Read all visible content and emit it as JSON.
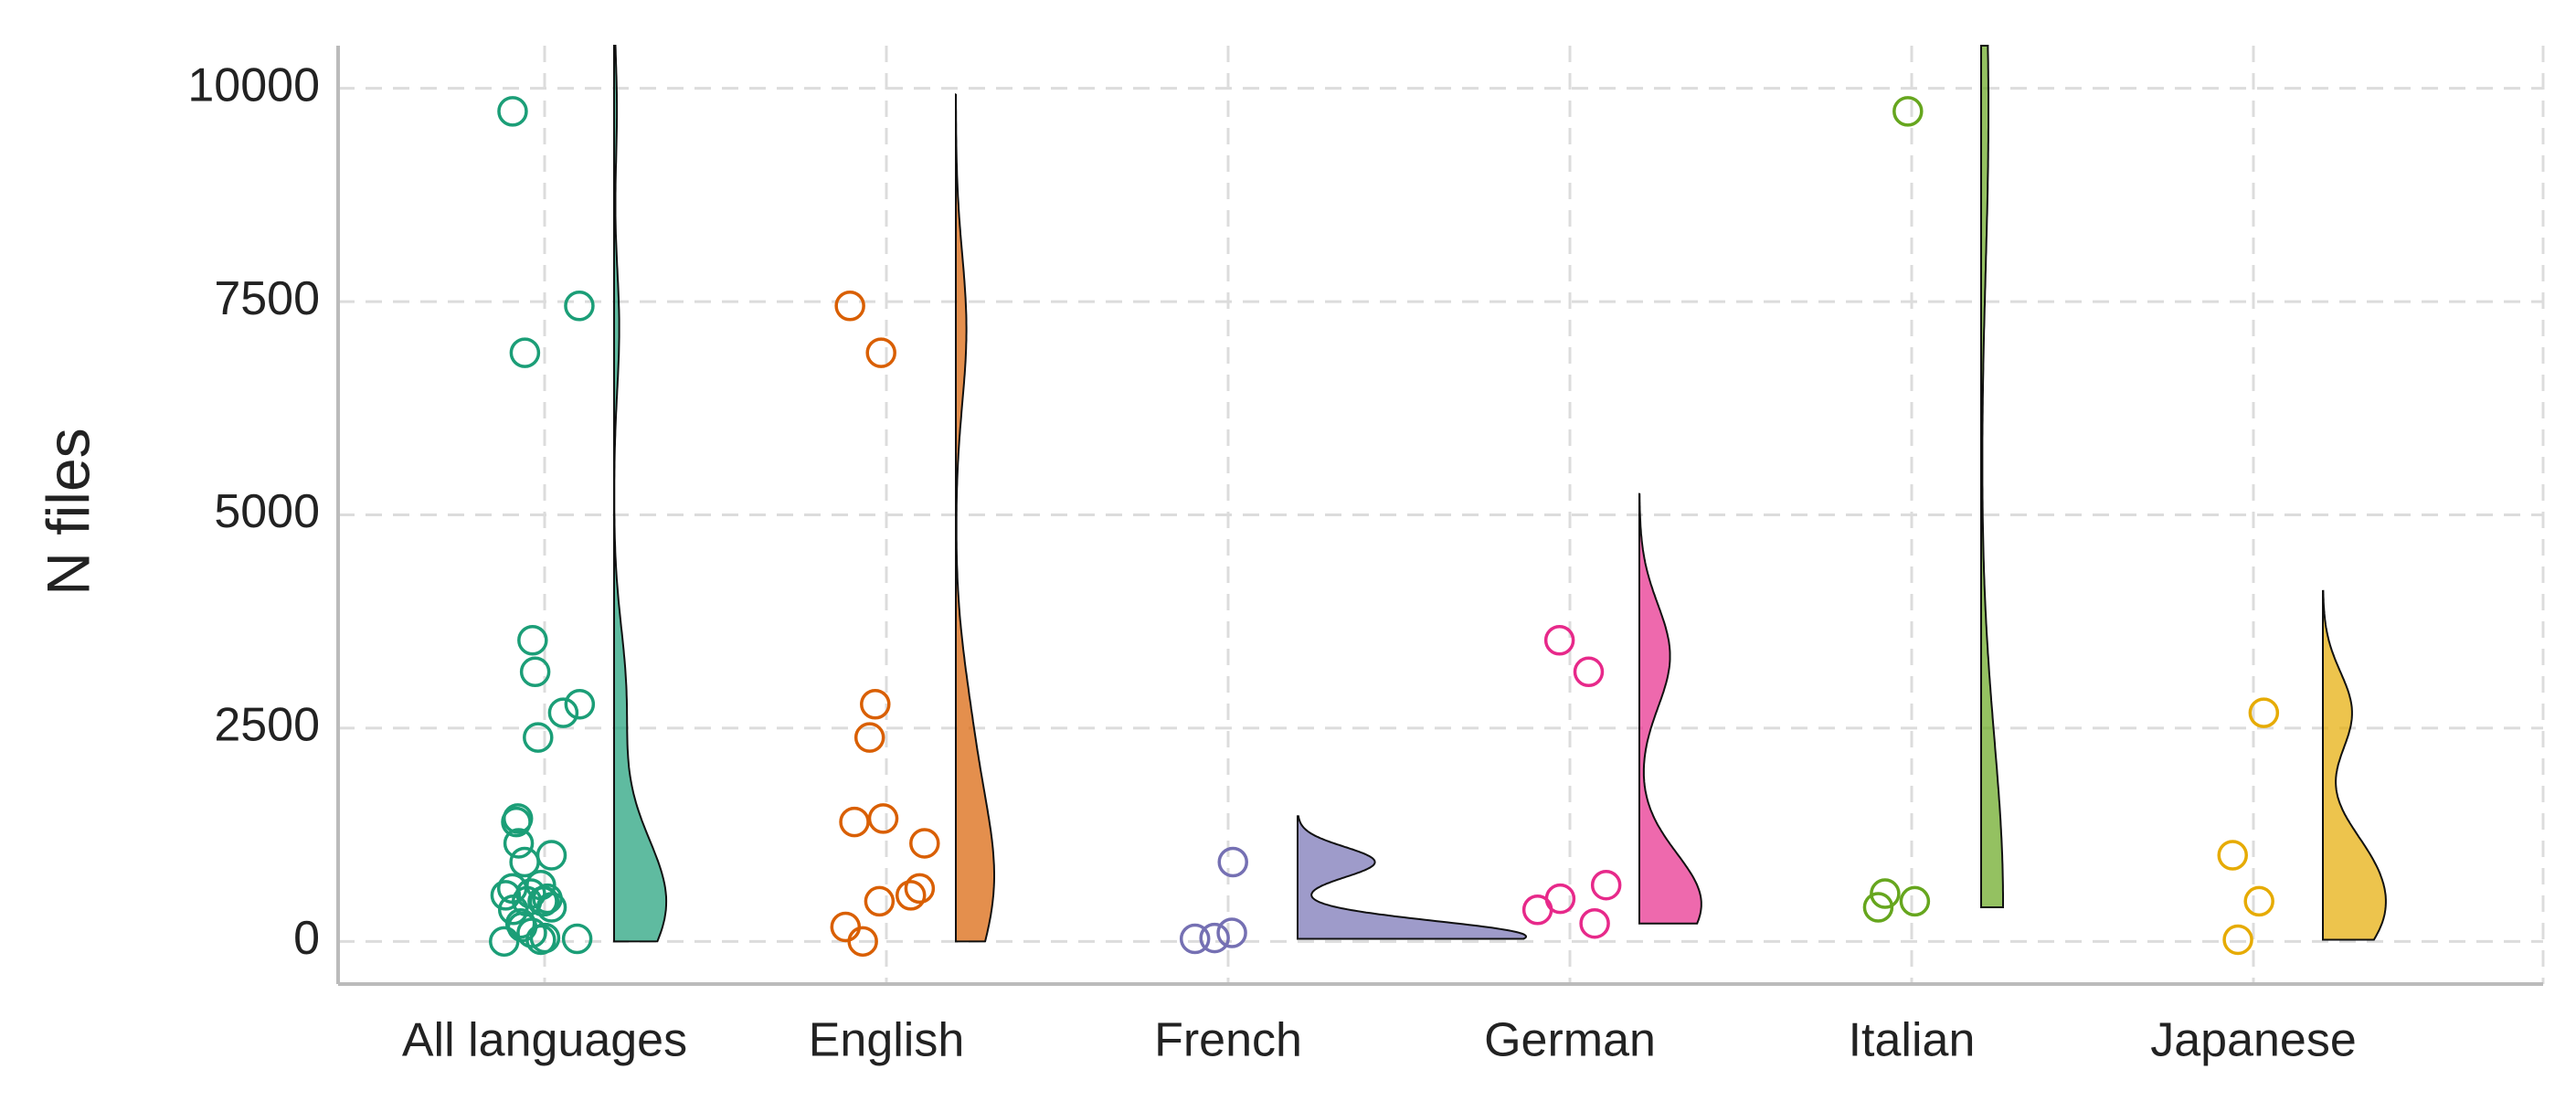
{
  "chart_data": {
    "type": "raincloud",
    "ylabel": "N files",
    "categories": [
      "All languages",
      "English",
      "French",
      "German",
      "Italian",
      "Japanese"
    ],
    "groups": [
      {
        "color": "#1b9e77",
        "values": [
          7450,
          6900,
          2780,
          2390,
          1440,
          1400,
          1150,
          620,
          540,
          470,
          170,
          0,
          930,
          100,
          40,
          30,
          3530,
          3160,
          660,
          500,
          370,
          210,
          9730,
          560,
          470,
          400,
          2680,
          1010,
          470,
          20
        ]
      },
      {
        "color": "#d95f02",
        "values": [
          7450,
          6900,
          2780,
          2390,
          1440,
          1400,
          1150,
          620,
          540,
          470,
          170,
          0
        ]
      },
      {
        "color": "#7570b3",
        "values": [
          930,
          100,
          40,
          30
        ]
      },
      {
        "color": "#e7298a",
        "values": [
          3530,
          3160,
          660,
          500,
          370,
          210
        ]
      },
      {
        "color": "#66a61e",
        "values": [
          9730,
          560,
          470,
          400
        ]
      },
      {
        "color": "#e6ab02",
        "values": [
          2680,
          1010,
          470,
          20
        ]
      }
    ],
    "ylim": [
      -500,
      10500
    ],
    "yticks": [
      0,
      2500,
      5000,
      7500,
      10000
    ],
    "grid": true
  }
}
